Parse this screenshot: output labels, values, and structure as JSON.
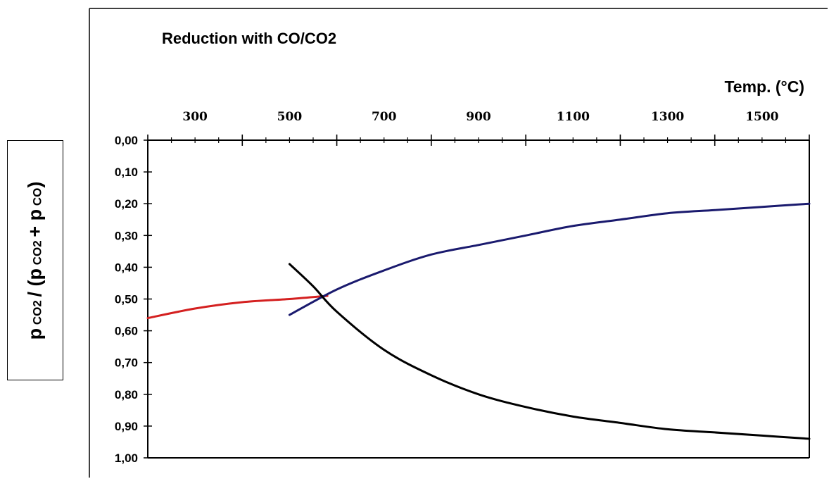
{
  "chart_data": {
    "type": "line",
    "title": "Reduction with CO/CO2",
    "xlabel": "Temp. (°C)",
    "ylabel": {
      "p1": "p",
      "s1": " CO2 ",
      "mid": " / (p",
      "s2": " CO2 ",
      "mid2": "+ p",
      "s3": " CO",
      "end": ")"
    },
    "xlim": [
      200,
      1600
    ],
    "ylim": [
      0,
      1
    ],
    "y_inverted": true,
    "x_axis_position": "top",
    "grid": false,
    "x_tick_labels": [
      "300",
      "500",
      "700",
      "900",
      "1100",
      "1300",
      "1500"
    ],
    "y_tick_labels": [
      "0,00",
      "0,10",
      "0,20",
      "0,30",
      "0,40",
      "0,50",
      "0,60",
      "0,70",
      "0,80",
      "0,90",
      "1,00"
    ],
    "series": [
      {
        "color": "#d42020",
        "x": [
          200,
          300,
          400,
          500,
          580
        ],
        "y": [
          0.56,
          0.53,
          0.51,
          0.5,
          0.49
        ]
      },
      {
        "color": "#1a1a6e",
        "x": [
          500,
          600,
          700,
          800,
          900,
          1000,
          1100,
          1200,
          1300,
          1400,
          1500,
          1600
        ],
        "y": [
          0.55,
          0.47,
          0.41,
          0.36,
          0.33,
          0.3,
          0.27,
          0.25,
          0.23,
          0.22,
          0.21,
          0.2
        ]
      },
      {
        "color": "#000000",
        "x": [
          500,
          550,
          600,
          700,
          800,
          900,
          1000,
          1100,
          1200,
          1300,
          1400,
          1500,
          1600
        ],
        "y": [
          0.39,
          0.46,
          0.54,
          0.66,
          0.74,
          0.8,
          0.84,
          0.87,
          0.89,
          0.91,
          0.92,
          0.93,
          0.94
        ]
      }
    ]
  }
}
